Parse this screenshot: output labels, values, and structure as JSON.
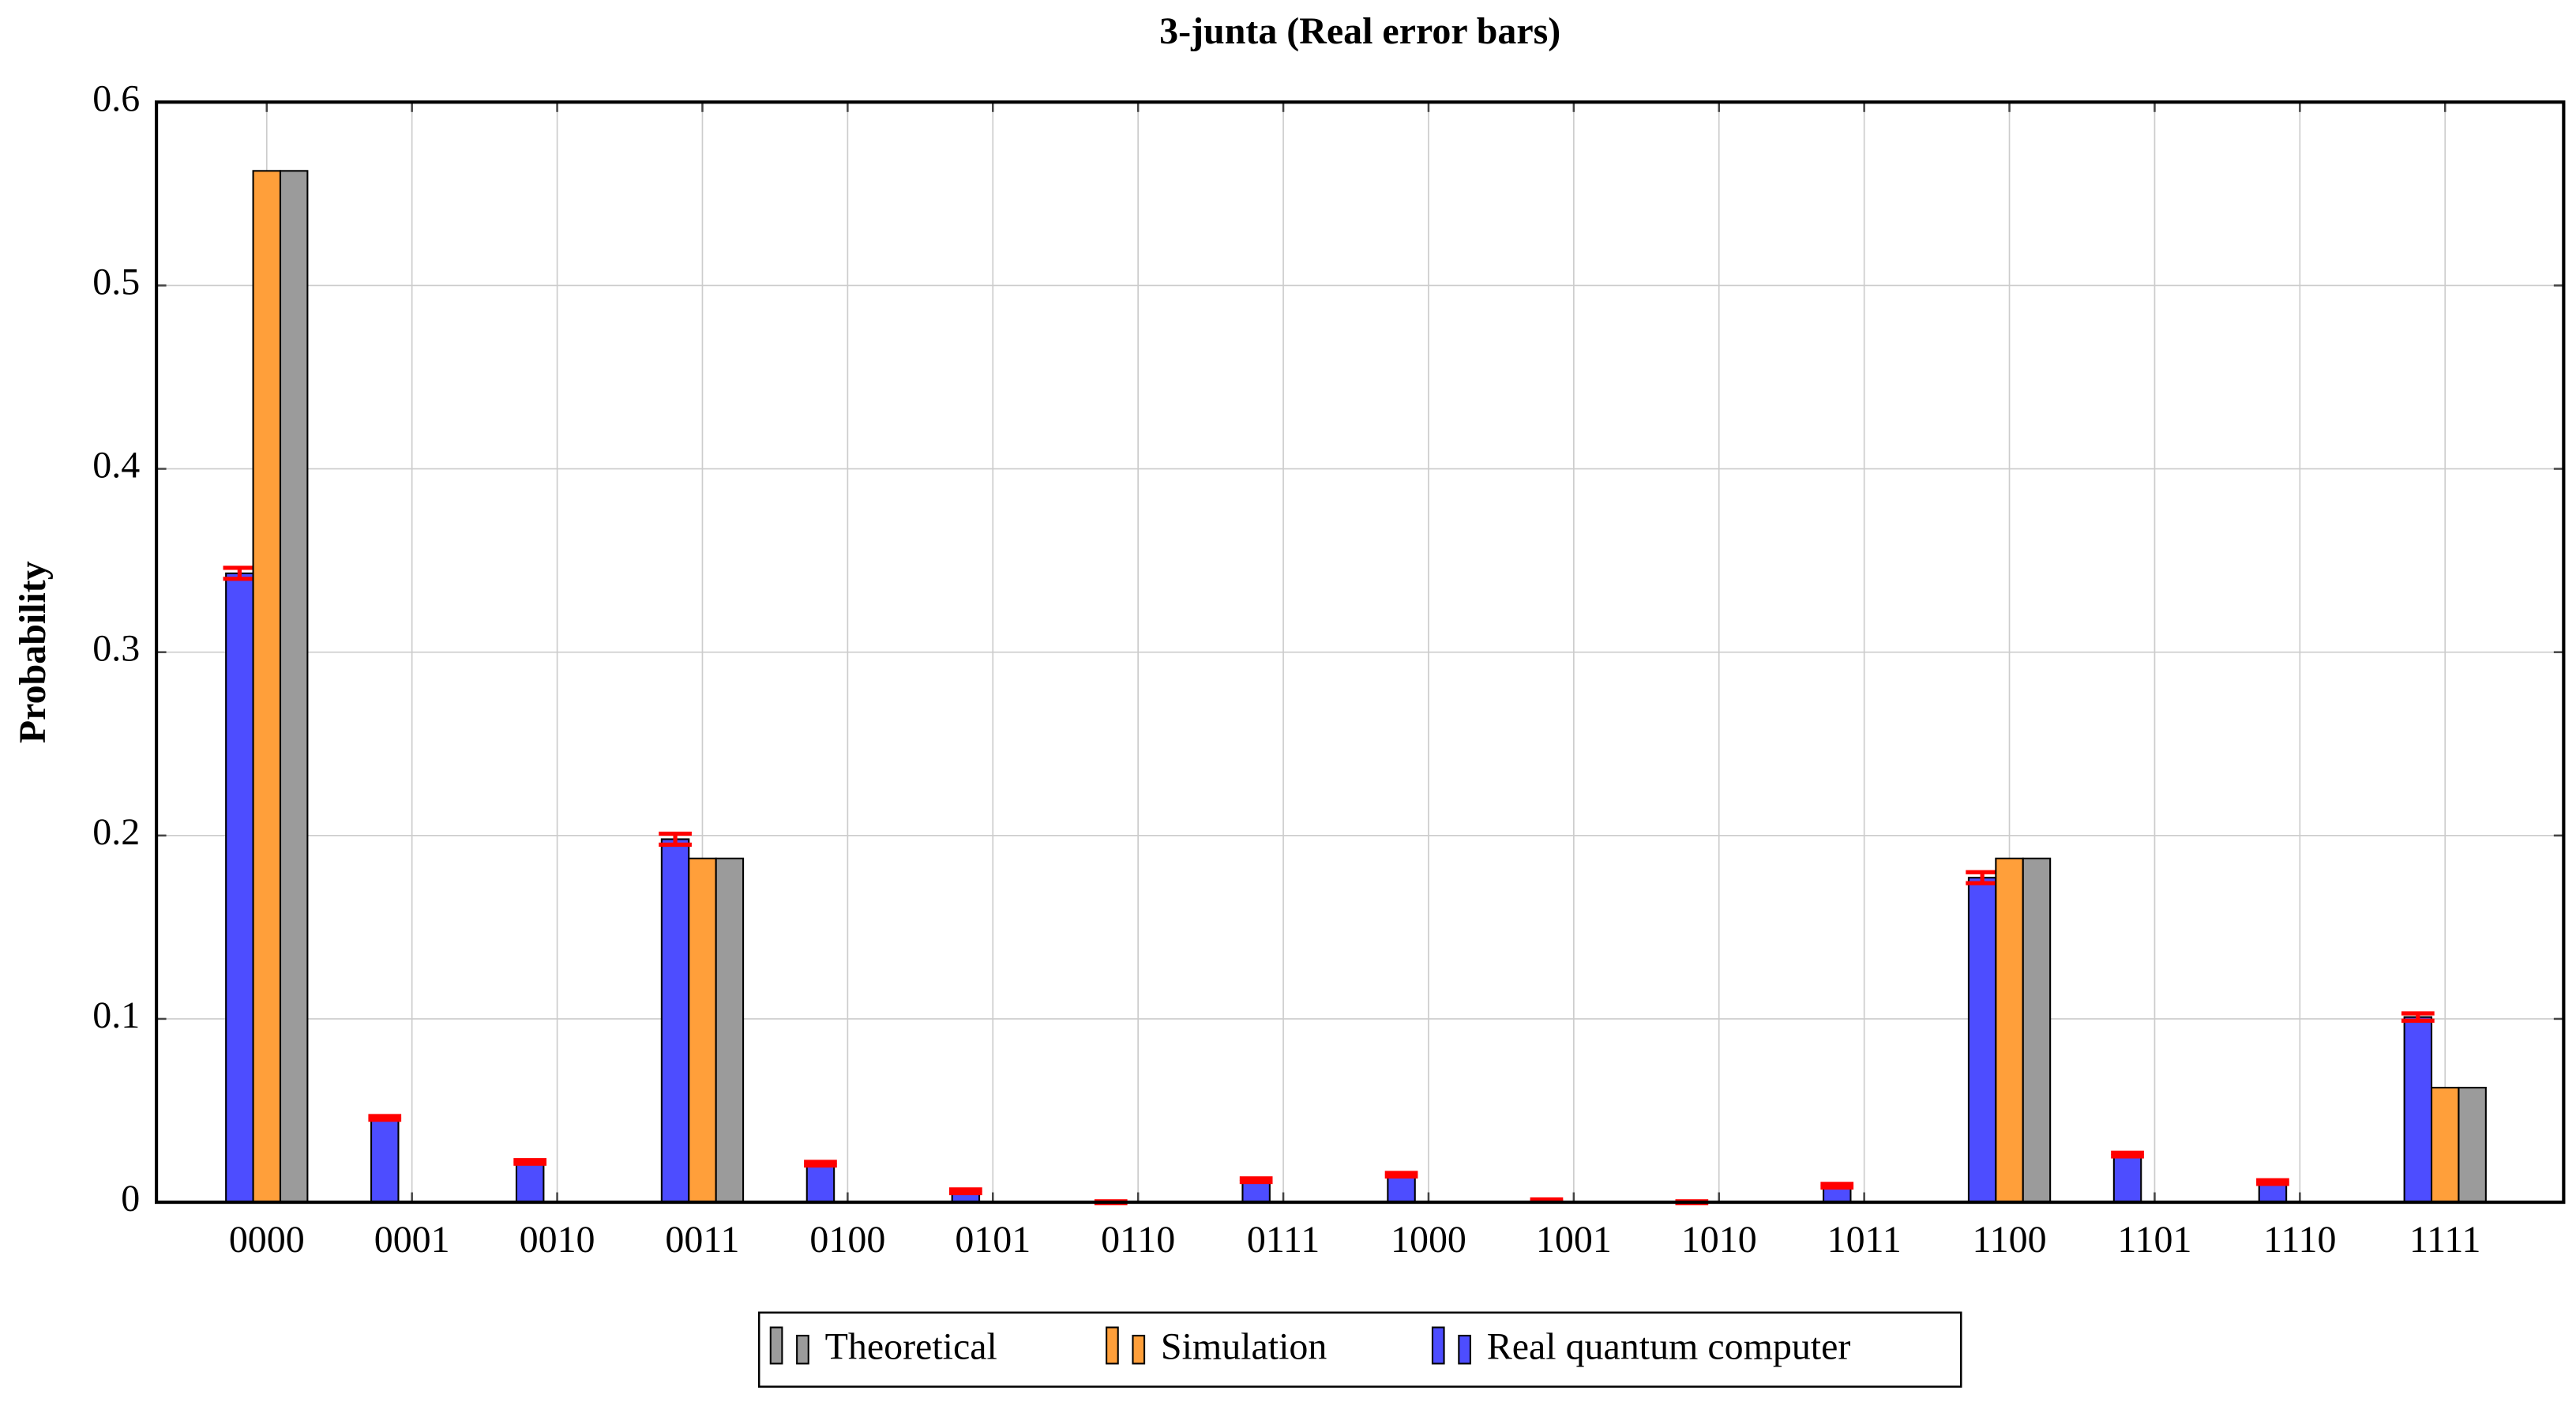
{
  "chart_data": {
    "type": "bar",
    "title": "3-junta (Real error bars)",
    "y_label": "Probability",
    "categories": [
      "0000",
      "0001",
      "0010",
      "0011",
      "0100",
      "0101",
      "0110",
      "0111",
      "1000",
      "1001",
      "1010",
      "1011",
      "1100",
      "1101",
      "1110",
      "1111"
    ],
    "series": [
      {
        "name": "Real quantum computer",
        "color": "#4d4dff",
        "values": [
          0.343,
          0.046,
          0.022,
          0.198,
          0.021,
          0.006,
          0.0,
          0.012,
          0.015,
          0.001,
          0.0,
          0.009,
          0.177,
          0.026,
          0.011,
          0.101
        ],
        "errors": [
          0.003,
          0.001,
          0.001,
          0.003,
          0.001,
          0.001,
          0.0005,
          0.001,
          0.001,
          0.0005,
          0.0005,
          0.001,
          0.003,
          0.001,
          0.001,
          0.002
        ],
        "error_color": "#ff0000"
      },
      {
        "name": "Simulation",
        "color": "#ff9f3a",
        "values": [
          0.5625,
          0,
          0,
          0.1875,
          0,
          0,
          0,
          0,
          0,
          0,
          0,
          0,
          0.1875,
          0,
          0,
          0.0625
        ]
      },
      {
        "name": "Theoretical",
        "color": "#9b9b9b",
        "values": [
          0.5625,
          0,
          0,
          0.1875,
          0,
          0,
          0,
          0,
          0,
          0,
          0,
          0,
          0.1875,
          0,
          0,
          0.0625
        ]
      }
    ],
    "ylim": [
      0,
      0.6
    ],
    "yticks": [
      0,
      0.1,
      0.2,
      0.3,
      0.4,
      0.5,
      0.6
    ],
    "grid": true,
    "legend": "bottom"
  }
}
